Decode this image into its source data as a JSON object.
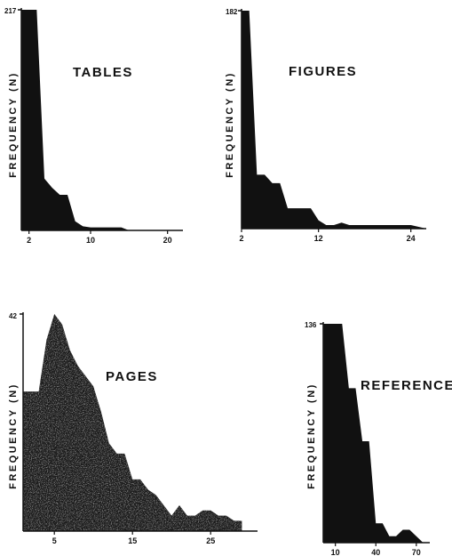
{
  "chart_data": [
    {
      "type": "area",
      "title": "TABLES",
      "ylabel": "FREQUENCY (N)",
      "y_max_label": "217",
      "ylim": [
        0,
        217
      ],
      "xlim": [
        1,
        22
      ],
      "xticks": [
        2,
        10,
        20
      ],
      "x": [
        1,
        3,
        4,
        5,
        6,
        7,
        8,
        9,
        10,
        11,
        14,
        15,
        16,
        22
      ],
      "y": [
        217,
        217,
        51,
        42,
        35,
        35,
        9,
        4,
        3,
        3,
        3,
        0,
        0,
        0
      ]
    },
    {
      "type": "area",
      "title": "FIGURES",
      "ylabel": "FREQUENCY (N)",
      "y_max_label": "182",
      "ylim": [
        0,
        182
      ],
      "xlim": [
        2,
        26
      ],
      "xticks": [
        2,
        12,
        24
      ],
      "x": [
        2,
        3,
        4,
        5,
        6,
        7,
        8,
        9,
        10,
        11,
        12,
        13,
        14,
        15,
        16,
        17,
        18,
        24,
        26
      ],
      "y": [
        182,
        182,
        45,
        45,
        38,
        38,
        17,
        17,
        17,
        17,
        7,
        3,
        3,
        5,
        3,
        3,
        3,
        3,
        0
      ]
    },
    {
      "type": "area",
      "title": "PAGES",
      "ylabel": "FREQUENCY (N)",
      "y_max_label": "42",
      "ylim": [
        0,
        42
      ],
      "xlim": [
        1,
        31
      ],
      "xticks": [
        5,
        15,
        25
      ],
      "x": [
        1,
        2,
        3,
        4,
        5,
        6,
        7,
        8,
        9,
        10,
        11,
        12,
        13,
        14,
        15,
        16,
        17,
        18,
        19,
        20,
        21,
        22,
        23,
        24,
        25,
        26,
        27,
        28,
        29
      ],
      "y": [
        27,
        27,
        27,
        37,
        42,
        40,
        35,
        32,
        30,
        28,
        23,
        17,
        15,
        15,
        10,
        10,
        8,
        7,
        5,
        3,
        5,
        3,
        3,
        4,
        4,
        3,
        3,
        2,
        2
      ]
    },
    {
      "type": "area",
      "title": "REFERENCES",
      "ylabel": "FREQUENCY (N)",
      "y_max_label": "136",
      "ylim": [
        0,
        136
      ],
      "xlim": [
        1,
        80
      ],
      "xticks": [
        10,
        40,
        70
      ],
      "x": [
        1,
        5,
        10,
        15,
        20,
        25,
        30,
        35,
        40,
        45,
        50,
        55,
        60,
        65,
        70,
        75
      ],
      "y": [
        136,
        136,
        136,
        136,
        96,
        96,
        63,
        63,
        12,
        12,
        4,
        4,
        8,
        8,
        4,
        0
      ]
    }
  ]
}
